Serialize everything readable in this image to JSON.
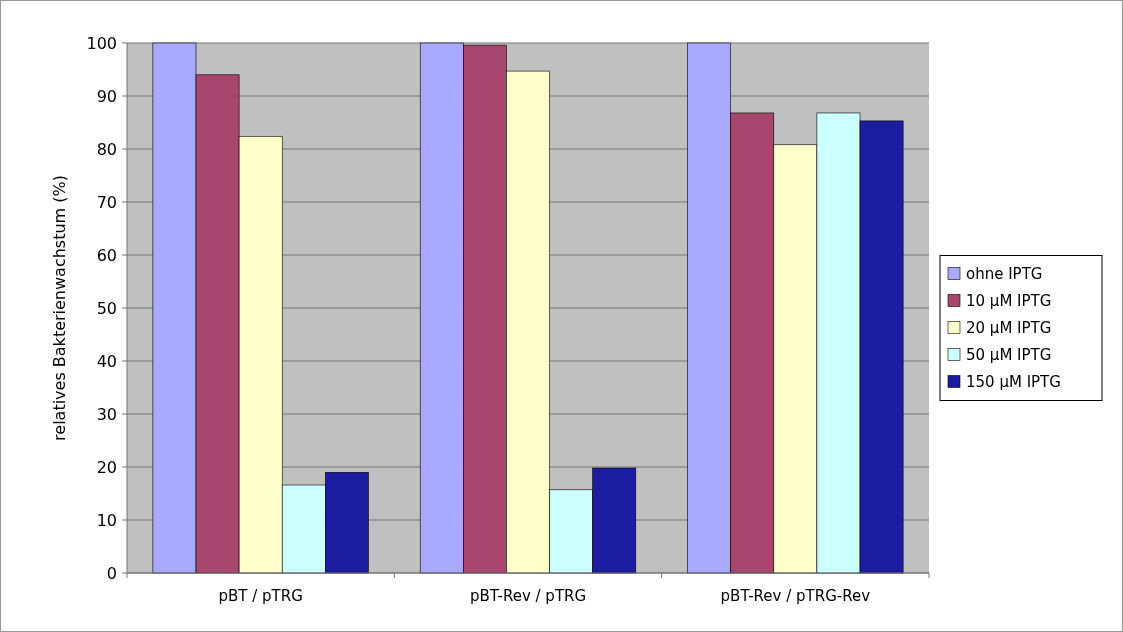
{
  "chart_data": {
    "type": "bar",
    "ylabel": "relatives Bakterienwachstum (%)",
    "categories": [
      "pBT / pTRG",
      "pBT-Rev / pTRG",
      "pBT-Rev / pTRG-Rev"
    ],
    "series": [
      {
        "name": "ohne IPTG",
        "color": "#a9a9ff",
        "values": [
          100,
          100,
          100
        ]
      },
      {
        "name": "10 µM IPTG",
        "color": "#a8466e",
        "values": [
          94,
          99.6,
          86.8
        ]
      },
      {
        "name": "20 µM IPTG",
        "color": "#ffffcc",
        "values": [
          82.4,
          94.7,
          80.8
        ]
      },
      {
        "name": "50 µM IPTG",
        "color": "#ccffff",
        "values": [
          16.6,
          15.7,
          86.8
        ]
      },
      {
        "name": "150 µM IPTG",
        "color": "#1c1ca0",
        "values": [
          19,
          19.8,
          85.3
        ]
      }
    ],
    "ylim": [
      0,
      100
    ],
    "yticks": [
      0,
      10,
      20,
      30,
      40,
      50,
      60,
      70,
      80,
      90,
      100
    ],
    "grid": "y",
    "legend": "right"
  }
}
